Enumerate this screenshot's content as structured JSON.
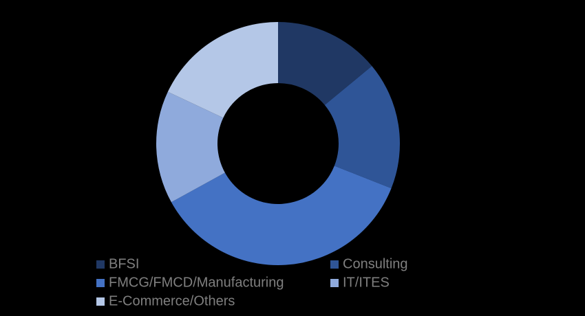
{
  "chart_data": {
    "type": "donut",
    "categories": [
      "BFSI",
      "Consulting",
      "FMCG/FMCD/Manufacturing",
      "IT/ITES",
      "E-Commerce/Others"
    ],
    "values": [
      14,
      17,
      36,
      15,
      18
    ],
    "colors": [
      "#203864",
      "#2f5597",
      "#4472c4",
      "#8faadc",
      "#b4c7e7"
    ]
  }
}
